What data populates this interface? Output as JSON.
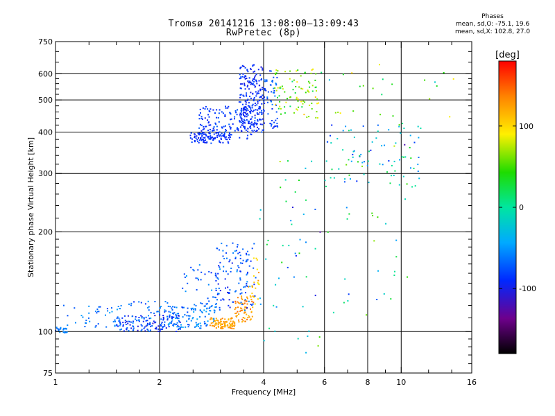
{
  "header": {
    "title": "Tromsø 20141216 13:08:00–13:09:43",
    "subtitle": "RwPretec (8p)"
  },
  "legend_text": {
    "heading": "Phases",
    "line_o": "mean, sd,O: -75.1, 19.6",
    "line_x": "mean, sd,X: 102.8, 27.0"
  },
  "colorbar": {
    "label": "[deg]",
    "ticks": [
      {
        "value": 100,
        "label": "100"
      },
      {
        "value": 0,
        "label": "0"
      },
      {
        "value": -100,
        "label": "-100"
      }
    ],
    "range": [
      -180,
      180
    ]
  },
  "chart_data": {
    "type": "scatter",
    "title": "Tromsø 20141216 13:08:00–13:09:43",
    "subtitle": "RwPretec (8p)",
    "xlabel": "Frequency [MHz]",
    "ylabel": "Stationary phase Virtual Height [km]",
    "xscale": "log",
    "yscale": "log",
    "xlim": [
      1,
      16
    ],
    "ylim": [
      75,
      750
    ],
    "xticks": [
      {
        "value": 1,
        "label": "1"
      },
      {
        "value": 2,
        "label": "2"
      },
      {
        "value": 4,
        "label": "4"
      },
      {
        "value": 6,
        "label": "6"
      },
      {
        "value": 8,
        "label": "8"
      },
      {
        "value": 10,
        "label": "10"
      },
      {
        "value": 16,
        "label": "16"
      }
    ],
    "x_minor_ticks": [
      1.25,
      1.5,
      1.75,
      2.5,
      3,
      3.5,
      5,
      7,
      9,
      12,
      14
    ],
    "yticks": [
      {
        "value": 75,
        "label": "75"
      },
      {
        "value": 100,
        "label": "100"
      },
      {
        "value": 200,
        "label": "200"
      },
      {
        "value": 300,
        "label": "300"
      },
      {
        "value": 400,
        "label": "400"
      },
      {
        "value": 500,
        "label": "500"
      },
      {
        "value": 600,
        "label": "600"
      },
      {
        "value": 750,
        "label": "750"
      }
    ],
    "y_minor_ticks": [
      80,
      85,
      90,
      95,
      110,
      120,
      130,
      140,
      150,
      160,
      170,
      180,
      190,
      220,
      240,
      260,
      280,
      320,
      340,
      360,
      380,
      420,
      440,
      460,
      480,
      520,
      540,
      560,
      580,
      650,
      700
    ],
    "grid_x": [
      2,
      4,
      6,
      8,
      10
    ],
    "grid_y": [
      100,
      200,
      300,
      400,
      500,
      600
    ],
    "color_by": "phase (deg)",
    "color_range": [
      -180,
      180
    ],
    "clusters": [
      {
        "fmin": 1.0,
        "fmax": 1.08,
        "hmin": 99,
        "hmax": 103,
        "n": 25,
        "phase": -60,
        "spread": 20
      },
      {
        "fmin": 1.05,
        "fmax": 1.55,
        "hmin": 103,
        "hmax": 120,
        "n": 45,
        "phase": -60,
        "spread": 25
      },
      {
        "fmin": 1.5,
        "fmax": 2.3,
        "hmin": 100,
        "hmax": 112,
        "n": 130,
        "phase": -85,
        "spread": 35
      },
      {
        "fmin": 1.6,
        "fmax": 2.2,
        "hmin": 104,
        "hmax": 125,
        "n": 40,
        "phase": -65,
        "spread": 30
      },
      {
        "fmin": 2.1,
        "fmax": 2.9,
        "hmin": 102,
        "hmax": 120,
        "n": 110,
        "phase": -60,
        "spread": 25
      },
      {
        "fmin": 2.3,
        "fmax": 3.0,
        "hmin": 115,
        "hmax": 160,
        "n": 45,
        "phase": -70,
        "spread": 30
      },
      {
        "fmin": 2.8,
        "fmax": 3.3,
        "hmin": 102,
        "hmax": 110,
        "n": 90,
        "phase": 125,
        "spread": 20
      },
      {
        "fmin": 3.3,
        "fmax": 3.75,
        "hmin": 107,
        "hmax": 128,
        "n": 70,
        "phase": 130,
        "spread": 25
      },
      {
        "fmin": 2.9,
        "fmax": 3.8,
        "hmin": 115,
        "hmax": 185,
        "n": 120,
        "phase": -75,
        "spread": 35
      },
      {
        "fmin": 3.6,
        "fmax": 3.95,
        "hmin": 120,
        "hmax": 185,
        "n": 20,
        "phase": 110,
        "spread": 35
      },
      {
        "fmin": 2.45,
        "fmax": 3.2,
        "hmin": 370,
        "hmax": 400,
        "n": 80,
        "phase": -90,
        "spread": 15
      },
      {
        "fmin": 2.6,
        "fmax": 3.7,
        "hmin": 380,
        "hmax": 480,
        "n": 160,
        "phase": -85,
        "spread": 20
      },
      {
        "fmin": 3.4,
        "fmax": 4.0,
        "hmin": 400,
        "hmax": 640,
        "n": 240,
        "phase": -90,
        "spread": 20
      },
      {
        "fmin": 4.0,
        "fmax": 4.4,
        "hmin": 410,
        "hmax": 620,
        "n": 60,
        "phase": -75,
        "spread": 30
      },
      {
        "fmin": 4.3,
        "fmax": 5.9,
        "hmin": 440,
        "hmax": 620,
        "n": 90,
        "phase": 60,
        "spread": 60
      },
      {
        "fmin": 3.9,
        "fmax": 5.9,
        "hmin": 85,
        "hmax": 330,
        "n": 50,
        "phase": -20,
        "spread": 110
      },
      {
        "fmin": 6.0,
        "fmax": 11.5,
        "hmin": 270,
        "hmax": 420,
        "n": 90,
        "phase": -20,
        "spread": 110
      },
      {
        "fmin": 6.0,
        "fmax": 14.5,
        "hmin": 420,
        "hmax": 660,
        "n": 25,
        "phase": 40,
        "spread": 90
      },
      {
        "fmin": 6.0,
        "fmax": 10.5,
        "hmin": 110,
        "hmax": 270,
        "n": 25,
        "phase": 0,
        "spread": 100
      }
    ]
  }
}
